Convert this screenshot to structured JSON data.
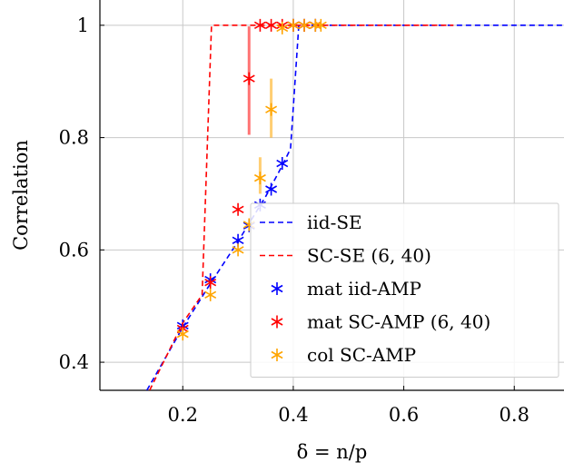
{
  "chart_data": {
    "type": "line",
    "xlabel": "δ = n/p",
    "ylabel": "Correlation",
    "xlim": [
      0.05,
      0.89
    ],
    "ylim": [
      0.35,
      1.045
    ],
    "x_ticks": [
      0.2,
      0.4,
      0.6,
      0.8
    ],
    "x_tick_labels": [
      "0.2",
      "0.4",
      "0.6",
      "0.8"
    ],
    "y_ticks": [
      0.4,
      0.6,
      0.8,
      1.0
    ],
    "y_tick_labels": [
      "0.4",
      "0.6",
      "0.8",
      "1"
    ],
    "grid": true,
    "legend_position": "bottom-right",
    "series": [
      {
        "name": "iid-SE",
        "kind": "dashed-line",
        "color": "#0000ff",
        "x": [
          0.135,
          0.2,
          0.25,
          0.3,
          0.35,
          0.38,
          0.395,
          0.41,
          0.89
        ],
        "y": [
          0.35,
          0.462,
          0.54,
          0.615,
          0.695,
          0.75,
          0.78,
          1.0,
          1.0
        ]
      },
      {
        "name": "SC-SE (6, 40)",
        "kind": "dashed-line",
        "color": "#ff0000",
        "x": [
          0.14,
          0.2,
          0.235,
          0.252,
          0.69
        ],
        "y": [
          0.35,
          0.47,
          0.52,
          1.0,
          1.0
        ]
      },
      {
        "name": "mat iid-AMP",
        "kind": "markers",
        "color": "#0000ff",
        "x": [
          0.2,
          0.25,
          0.3,
          0.32,
          0.34,
          0.36,
          0.38,
          0.4,
          0.42,
          0.44
        ],
        "y": [
          0.465,
          0.547,
          0.617,
          0.643,
          0.68,
          0.708,
          0.754,
          1.0,
          1.0,
          1.0
        ]
      },
      {
        "name": "mat SC-AMP (6, 40)",
        "kind": "markers",
        "color": "#ff0000",
        "x": [
          0.2,
          0.25,
          0.3,
          0.32,
          0.34,
          0.36,
          0.38,
          0.4,
          0.42,
          0.44
        ],
        "y": [
          0.46,
          0.542,
          0.672,
          0.905,
          1.0,
          1.0,
          1.0,
          1.0,
          1.0,
          1.0
        ],
        "error_bars": [
          {
            "x": 0.32,
            "low": 0.805,
            "high": 0.998,
            "color": "#ff0000"
          }
        ]
      },
      {
        "name": "col SC-AMP",
        "kind": "markers",
        "color": "#ffa500",
        "x": [
          0.2,
          0.25,
          0.3,
          0.32,
          0.34,
          0.36,
          0.38,
          0.4,
          0.42,
          0.44,
          0.45
        ],
        "y": [
          0.45,
          0.52,
          0.6,
          0.645,
          0.728,
          0.85,
          0.995,
          1.0,
          1.0,
          1.0,
          1.0
        ],
        "error_bars": [
          {
            "x": 0.34,
            "low": 0.7,
            "high": 0.765,
            "color": "#ffa500"
          },
          {
            "x": 0.36,
            "low": 0.8,
            "high": 0.905,
            "color": "#ffa500"
          }
        ]
      }
    ]
  }
}
